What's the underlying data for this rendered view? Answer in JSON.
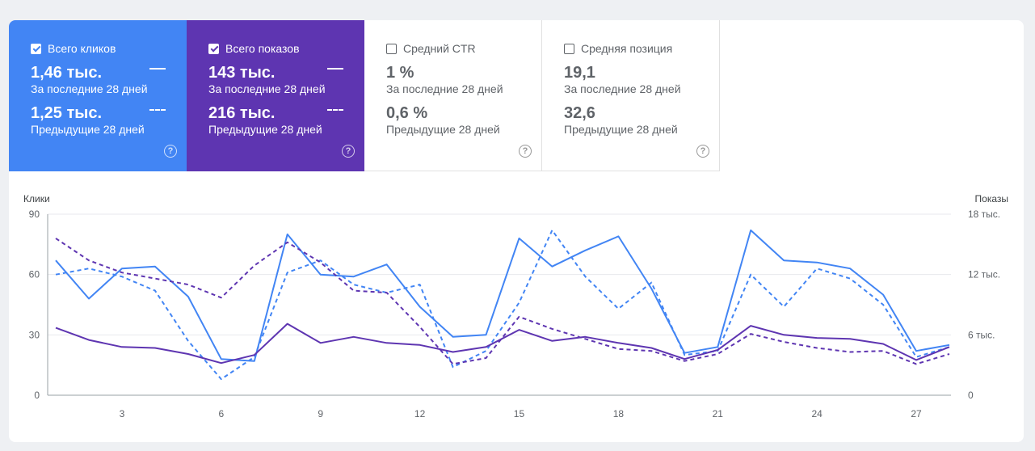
{
  "cards": [
    {
      "label": "Всего кликов",
      "value": "1,46 тыс.",
      "period": "За последние 28 дней",
      "prev_value": "1,25 тыс.",
      "prev_period": "Предыдущие 28 дней",
      "checked": true,
      "color": "#4285f4"
    },
    {
      "label": "Всего показов",
      "value": "143 тыс.",
      "period": "За последние 28 дней",
      "prev_value": "216 тыс.",
      "prev_period": "Предыдущие 28 дней",
      "checked": true,
      "color": "#5e35b1"
    },
    {
      "label": "Средний CTR",
      "value": "1 %",
      "period": "За последние 28 дней",
      "prev_value": "0,6 %",
      "prev_period": "Предыдущие 28 дней",
      "checked": false,
      "color": "#ffffff"
    },
    {
      "label": "Средняя позиция",
      "value": "19,1",
      "period": "За последние 28 дней",
      "prev_value": "32,6",
      "prev_period": "Предыдущие 28 дней",
      "checked": false,
      "color": "#ffffff"
    }
  ],
  "chart_data": {
    "type": "line",
    "left_axis_label": "Клики",
    "right_axis_label": "Показы",
    "left_ticks": [
      "0",
      "30",
      "60",
      "90"
    ],
    "right_ticks": [
      "0",
      "6 тыс.",
      "12 тыс.",
      "18 тыс."
    ],
    "x_ticks": [
      "3",
      "6",
      "9",
      "12",
      "15",
      "18",
      "21",
      "24",
      "27"
    ],
    "ylim_left": [
      0,
      90
    ],
    "ylim_right": [
      0,
      18000
    ],
    "x": [
      1,
      2,
      3,
      4,
      5,
      6,
      7,
      8,
      9,
      10,
      11,
      12,
      13,
      14,
      15,
      16,
      17,
      18,
      19,
      20,
      21,
      22,
      23,
      24,
      25,
      26,
      27,
      28
    ],
    "grid": true,
    "series": [
      {
        "metric": "clicks",
        "period": "current",
        "axis": "left",
        "dashed": false,
        "color": "#4285f4",
        "values": [
          67,
          48,
          63,
          64,
          49,
          18,
          17,
          80,
          60,
          59,
          65,
          44,
          29,
          30,
          78,
          64,
          72,
          79,
          53,
          21,
          24,
          82,
          67,
          66,
          63,
          50,
          22,
          25
        ]
      },
      {
        "metric": "clicks",
        "period": "previous",
        "axis": "left",
        "dashed": true,
        "color": "#4285f4",
        "values": [
          60,
          63,
          59,
          52,
          27,
          8,
          19,
          61,
          67,
          55,
          51,
          55,
          14,
          22,
          46,
          82,
          59,
          43,
          56,
          20,
          22,
          60,
          44,
          63,
          58,
          45,
          19,
          24
        ]
      },
      {
        "metric": "impressions",
        "period": "current",
        "axis": "right",
        "dashed": false,
        "color": "#5e35b1",
        "values": [
          6700,
          5500,
          4800,
          4700,
          4100,
          3200,
          4000,
          7100,
          5200,
          5800,
          5200,
          5000,
          4300,
          4800,
          6500,
          5400,
          5800,
          5200,
          4700,
          3600,
          4500,
          6900,
          6000,
          5700,
          5600,
          5100,
          3500,
          4800
        ]
      },
      {
        "metric": "impressions",
        "period": "previous",
        "axis": "right",
        "dashed": true,
        "color": "#5e35b1",
        "values": [
          15600,
          13400,
          12200,
          11600,
          11000,
          9700,
          12900,
          15200,
          13200,
          10400,
          10200,
          6800,
          3100,
          3700,
          7800,
          6600,
          5600,
          4600,
          4400,
          3400,
          4100,
          6100,
          5300,
          4700,
          4300,
          4400,
          3100,
          4100
        ]
      }
    ]
  }
}
